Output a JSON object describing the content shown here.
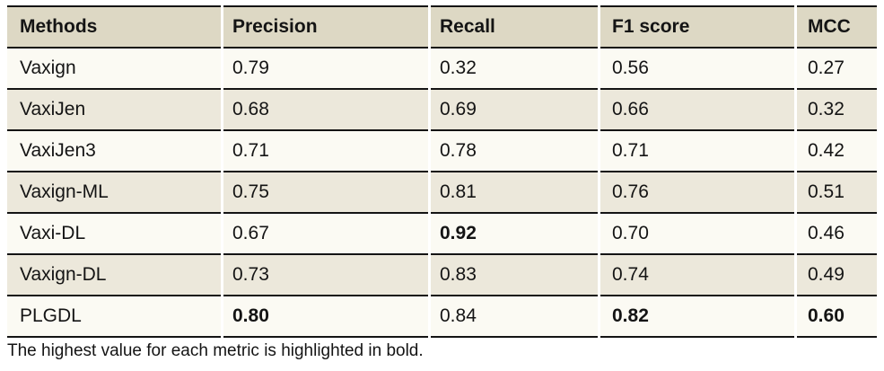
{
  "table": {
    "columns": [
      "Methods",
      "Precision",
      "Recall",
      "F1 score",
      "MCC"
    ],
    "rows": [
      {
        "method": "Vaxign",
        "values": [
          "0.79",
          "0.32",
          "0.56",
          "0.27"
        ],
        "bold": [
          false,
          false,
          false,
          false
        ]
      },
      {
        "method": "VaxiJen",
        "values": [
          "0.68",
          "0.69",
          "0.66",
          "0.32"
        ],
        "bold": [
          false,
          false,
          false,
          false
        ]
      },
      {
        "method": "VaxiJen3",
        "values": [
          "0.71",
          "0.78",
          "0.71",
          "0.42"
        ],
        "bold": [
          false,
          false,
          false,
          false
        ]
      },
      {
        "method": "Vaxign-ML",
        "values": [
          "0.75",
          "0.81",
          "0.76",
          "0.51"
        ],
        "bold": [
          false,
          false,
          false,
          false
        ]
      },
      {
        "method": "Vaxi-DL",
        "values": [
          "0.67",
          "0.92",
          "0.70",
          "0.46"
        ],
        "bold": [
          false,
          true,
          false,
          false
        ]
      },
      {
        "method": "Vaxign-DL",
        "values": [
          "0.73",
          "0.83",
          "0.74",
          "0.49"
        ],
        "bold": [
          false,
          false,
          false,
          false
        ]
      },
      {
        "method": "PLGDL",
        "values": [
          "0.80",
          "0.84",
          "0.82",
          "0.60"
        ],
        "bold": [
          true,
          false,
          true,
          true
        ]
      }
    ]
  },
  "footnote": "The highest value for each metric is highlighted in bold.",
  "colors": {
    "header_bg": "#ddd8c4",
    "row_light": "#fbfaf3",
    "row_dark": "#ece8db",
    "border": "#141414",
    "text": "#141414",
    "page_bg": "#ffffff"
  }
}
